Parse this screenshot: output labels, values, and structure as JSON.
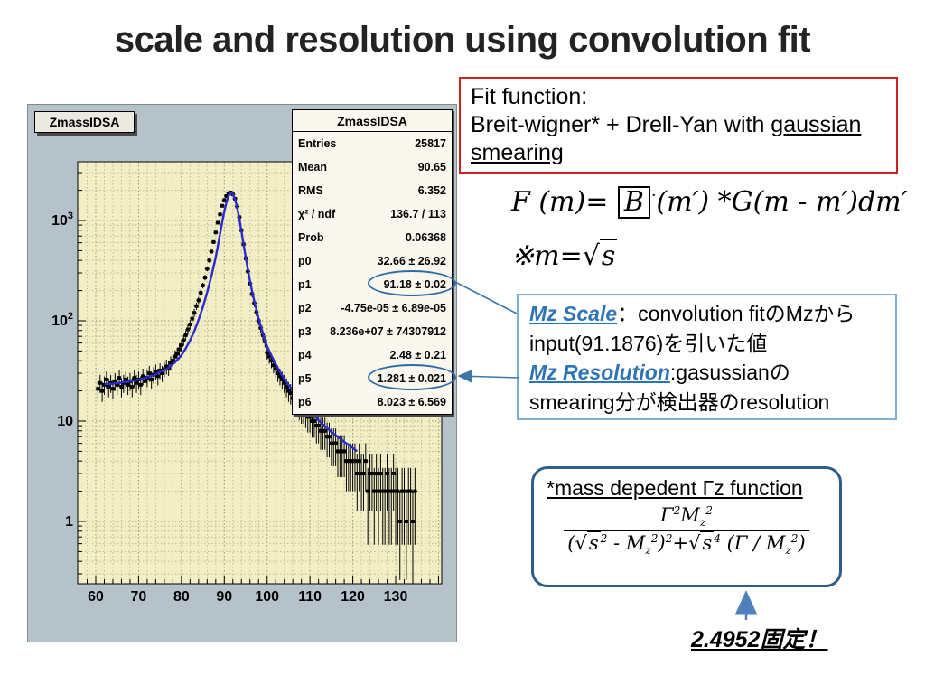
{
  "slide": {
    "title": "scale and resolution using convolution fit"
  },
  "colors": {
    "accent_red": "#cc2222",
    "accent_blue": "#2e74b5",
    "bluebox_border": "#7bafd4",
    "roundbox_border": "#2f5d8a",
    "connector_blue": "#3f76a8",
    "fit_curve": "#2a2ad0",
    "canvas_bg": "#b6c2ca",
    "frame_bg": "#f2eec5"
  },
  "plot": {
    "pave_label": "ZmassIDSA",
    "stats": {
      "title": "ZmassIDSA",
      "rows": [
        {
          "label": "Entries",
          "value": "25817"
        },
        {
          "label": "Mean",
          "value": "90.65"
        },
        {
          "label": "RMS",
          "value": "6.352"
        },
        {
          "label": "χ² / ndf",
          "value": "136.7 / 113"
        },
        {
          "label": "Prob",
          "value": "0.06368"
        },
        {
          "label": "p0",
          "value": "32.66 ± 26.92"
        },
        {
          "label": "p1",
          "value": "91.18 ± 0.02"
        },
        {
          "label": "p2",
          "value": "-4.75e-05 ± 6.89e-05"
        },
        {
          "label": "p3",
          "value": "8.236e+07 ± 74307912"
        },
        {
          "label": "p4",
          "value": "2.48 ± 0.21"
        },
        {
          "label": "p5",
          "value": "1.281 ± 0.021"
        },
        {
          "label": "p6",
          "value": "8.023 ± 6.569"
        }
      ]
    }
  },
  "chart_data": {
    "type": "scatter",
    "title": "ZmassIDSA",
    "xlabel": "",
    "ylabel": "",
    "y_scale": "log",
    "grid": true,
    "x_ticks": [
      60,
      70,
      80,
      90,
      100,
      110,
      120,
      130
    ],
    "y_ticks": [
      "1",
      "10",
      "10^2",
      "10^3"
    ],
    "xlim": [
      55.8,
      140.8
    ],
    "ylim": [
      0.24,
      3850
    ],
    "series": [
      {
        "name": "data",
        "kind": "points_with_errors",
        "color": "#000000",
        "points": [
          [
            60.5,
            21
          ],
          [
            61,
            24
          ],
          [
            61.5,
            20
          ],
          [
            62,
            23
          ],
          [
            62.5,
            26
          ],
          [
            63,
            22
          ],
          [
            63.5,
            24
          ],
          [
            64,
            21
          ],
          [
            64.5,
            25
          ],
          [
            65,
            23
          ],
          [
            65.5,
            27
          ],
          [
            66,
            22
          ],
          [
            66.5,
            24
          ],
          [
            67,
            26
          ],
          [
            67.5,
            23
          ],
          [
            68,
            25
          ],
          [
            68.5,
            22
          ],
          [
            69,
            27
          ],
          [
            69.5,
            24
          ],
          [
            70,
            26
          ],
          [
            70.5,
            23
          ],
          [
            71,
            28
          ],
          [
            71.5,
            25
          ],
          [
            72,
            27
          ],
          [
            72.5,
            30
          ],
          [
            73,
            26
          ],
          [
            73.5,
            29
          ],
          [
            74,
            31
          ],
          [
            74.5,
            28
          ],
          [
            75,
            32
          ],
          [
            75.5,
            30
          ],
          [
            76,
            33
          ],
          [
            76.5,
            35
          ],
          [
            77,
            34
          ],
          [
            77.5,
            38
          ],
          [
            78,
            40
          ],
          [
            78.5,
            44
          ],
          [
            79,
            47
          ],
          [
            79.5,
            52
          ],
          [
            80,
            57
          ],
          [
            80.5,
            64
          ],
          [
            81,
            72
          ],
          [
            81.5,
            82
          ],
          [
            82,
            92
          ],
          [
            82.5,
            105
          ],
          [
            83,
            120
          ],
          [
            83.5,
            140
          ],
          [
            84,
            160
          ],
          [
            84.5,
            190
          ],
          [
            85,
            225
          ],
          [
            85.5,
            270
          ],
          [
            86,
            330
          ],
          [
            86.5,
            400
          ],
          [
            87,
            490
          ],
          [
            87.5,
            610
          ],
          [
            88,
            760
          ],
          [
            88.5,
            950
          ],
          [
            89,
            1150
          ],
          [
            89.5,
            1400
          ],
          [
            90,
            1600
          ],
          [
            90.5,
            1750
          ],
          [
            91,
            1870
          ],
          [
            91.5,
            1900
          ],
          [
            92,
            1820
          ],
          [
            92.5,
            1650
          ],
          [
            93,
            1380
          ],
          [
            93.5,
            1080
          ],
          [
            94,
            800
          ],
          [
            94.5,
            580
          ],
          [
            95,
            420
          ],
          [
            95.5,
            310
          ],
          [
            96,
            235
          ],
          [
            96.5,
            185
          ],
          [
            97,
            150
          ],
          [
            97.5,
            122
          ],
          [
            98,
            100
          ],
          [
            98.5,
            85
          ],
          [
            99,
            72
          ],
          [
            99.5,
            62
          ],
          [
            100,
            48
          ],
          [
            100.5,
            44
          ],
          [
            101,
            40
          ],
          [
            101.5,
            36
          ],
          [
            102,
            33
          ],
          [
            102.5,
            30
          ],
          [
            103,
            28
          ],
          [
            103.5,
            26
          ],
          [
            104,
            24
          ],
          [
            104.5,
            22
          ],
          [
            105,
            20
          ],
          [
            105.5,
            19
          ],
          [
            106,
            17
          ],
          [
            106.5,
            16
          ],
          [
            107,
            15
          ],
          [
            107.5,
            14
          ],
          [
            108,
            13
          ],
          [
            108.5,
            13
          ],
          [
            109,
            12
          ],
          [
            109.5,
            11
          ],
          [
            110,
            11
          ],
          [
            110.5,
            10
          ],
          [
            111,
            10
          ],
          [
            111.5,
            9
          ],
          [
            112,
            9
          ],
          [
            112.5,
            8
          ],
          [
            113,
            8
          ],
          [
            113.5,
            8
          ],
          [
            114,
            7
          ],
          [
            114.5,
            7
          ],
          [
            115,
            6
          ],
          [
            115.5,
            6
          ],
          [
            116,
            6
          ],
          [
            116.5,
            5
          ],
          [
            117,
            5
          ],
          [
            117.5,
            5
          ],
          [
            118,
            5
          ],
          [
            118.5,
            4
          ],
          [
            119,
            4
          ],
          [
            119.5,
            4
          ],
          [
            120,
            4
          ],
          [
            120.5,
            4
          ],
          [
            121,
            3
          ],
          [
            121.5,
            4
          ],
          [
            122,
            3
          ],
          [
            122.5,
            3
          ],
          [
            123,
            4
          ],
          [
            123.5,
            2
          ],
          [
            124,
            3
          ],
          [
            124.5,
            3
          ],
          [
            125,
            2
          ],
          [
            125.5,
            3
          ],
          [
            126,
            2
          ],
          [
            126.5,
            3
          ],
          [
            127,
            2
          ],
          [
            127.5,
            2
          ],
          [
            128,
            3
          ],
          [
            128.5,
            2
          ],
          [
            129,
            2
          ],
          [
            129.5,
            3
          ],
          [
            130,
            2
          ],
          [
            130.5,
            2
          ],
          [
            131,
            1
          ],
          [
            131.5,
            2
          ],
          [
            132,
            2
          ],
          [
            132.5,
            1
          ],
          [
            133,
            2
          ],
          [
            133.5,
            2
          ],
          [
            134,
            1
          ],
          [
            134.5,
            2
          ]
        ]
      },
      {
        "name": "convolution fit",
        "kind": "line",
        "color": "#2a2ad0",
        "points": [
          [
            62,
            23.2
          ],
          [
            64,
            23.6
          ],
          [
            66,
            24.2
          ],
          [
            68,
            24.9
          ],
          [
            70,
            25.9
          ],
          [
            72,
            27.3
          ],
          [
            74,
            29.3
          ],
          [
            76,
            32.3
          ],
          [
            77,
            34.3
          ],
          [
            78,
            37
          ],
          [
            79,
            40.5
          ],
          [
            80,
            45.5
          ],
          [
            81,
            53
          ],
          [
            82,
            63.5
          ],
          [
            83,
            79
          ],
          [
            84,
            102
          ],
          [
            85,
            137
          ],
          [
            86,
            192
          ],
          [
            87,
            280
          ],
          [
            88,
            430
          ],
          [
            88.5,
            560
          ],
          [
            89,
            730
          ],
          [
            89.5,
            960
          ],
          [
            90,
            1230
          ],
          [
            90.5,
            1520
          ],
          [
            91,
            1750
          ],
          [
            91.3,
            1850
          ],
          [
            91.7,
            1880
          ],
          [
            92,
            1820
          ],
          [
            92.5,
            1640
          ],
          [
            93,
            1350
          ],
          [
            93.5,
            1040
          ],
          [
            94,
            780
          ],
          [
            94.5,
            580
          ],
          [
            95,
            430
          ],
          [
            95.5,
            325
          ],
          [
            96,
            250
          ],
          [
            96.5,
            196
          ],
          [
            97,
            157
          ],
          [
            97.5,
            128
          ],
          [
            98,
            106
          ],
          [
            98.5,
            89
          ],
          [
            99,
            76
          ],
          [
            99.5,
            62
          ],
          [
            100,
            56
          ],
          [
            100.5,
            50
          ],
          [
            101,
            45
          ],
          [
            102,
            37
          ],
          [
            103,
            31
          ],
          [
            104,
            26.5
          ],
          [
            105,
            23
          ],
          [
            106,
            20
          ],
          [
            107,
            17.7
          ],
          [
            108,
            15.8
          ],
          [
            109,
            14.2
          ],
          [
            110,
            12.5
          ],
          [
            111,
            11.4
          ],
          [
            112,
            10.2
          ],
          [
            113,
            9.3
          ],
          [
            114,
            8.5
          ],
          [
            115,
            7.8
          ],
          [
            116,
            7.2
          ],
          [
            117,
            6.7
          ],
          [
            118,
            6.2
          ],
          [
            119,
            5.8
          ],
          [
            120,
            5.4
          ],
          [
            121,
            5.0
          ]
        ]
      }
    ]
  },
  "fit_box": {
    "line1": "Fit function:",
    "line2_pre": "Breit-wigner* + Drell-Yan with ",
    "underline1": "gaussian",
    "underline2": "smearing"
  },
  "formulas": {
    "convolution": [
      {
        "t": "F (m)= "
      },
      {
        "t": "B",
        "s": "box"
      },
      {
        "t": "·",
        "s": "sup"
      },
      {
        "t": "(m′) *G(m - m′)dm′"
      }
    ],
    "mass_note": [
      {
        "t": "※"
      },
      {
        "t": "m="
      },
      {
        "t": "s",
        "s": "sqrt"
      }
    ],
    "gamma_num": [
      {
        "t": "Γ"
      },
      {
        "t": "2",
        "s": "sup"
      },
      {
        "t": "M"
      },
      {
        "t": "z",
        "s": "sub"
      },
      {
        "t": "2",
        "s": "sup"
      }
    ],
    "gamma_den": [
      {
        "t": "("
      },
      {
        "t": "s",
        "s": "sqrt"
      },
      {
        "t": "2",
        "s": "sup"
      },
      {
        "t": " - "
      },
      {
        "t": "M"
      },
      {
        "t": "z",
        "s": "sub"
      },
      {
        "t": "2",
        "s": "sup"
      },
      {
        "t": ")"
      },
      {
        "t": "2",
        "s": "sup"
      },
      {
        "t": "+"
      },
      {
        "t": "s",
        "s": "sqrt"
      },
      {
        "t": "4",
        "s": "sup"
      },
      {
        "t": " (Γ / "
      },
      {
        "t": "M"
      },
      {
        "t": "z",
        "s": "sub"
      },
      {
        "t": "2",
        "s": "sup"
      },
      {
        "t": ")"
      }
    ]
  },
  "mz_box": {
    "scale_term": "Mz Scale",
    "scale_rest": "：convolution fitのMzから",
    "scale_line2": "input(91.1876)を引いた値",
    "res_term": "Mz Resolution",
    "res_rest": ":gasussianの",
    "res_line2": "smearing分が検出器のresolution"
  },
  "gamma_box": {
    "title": "*mass depedent Γz function",
    "fixed_note": "2.4952固定！"
  }
}
